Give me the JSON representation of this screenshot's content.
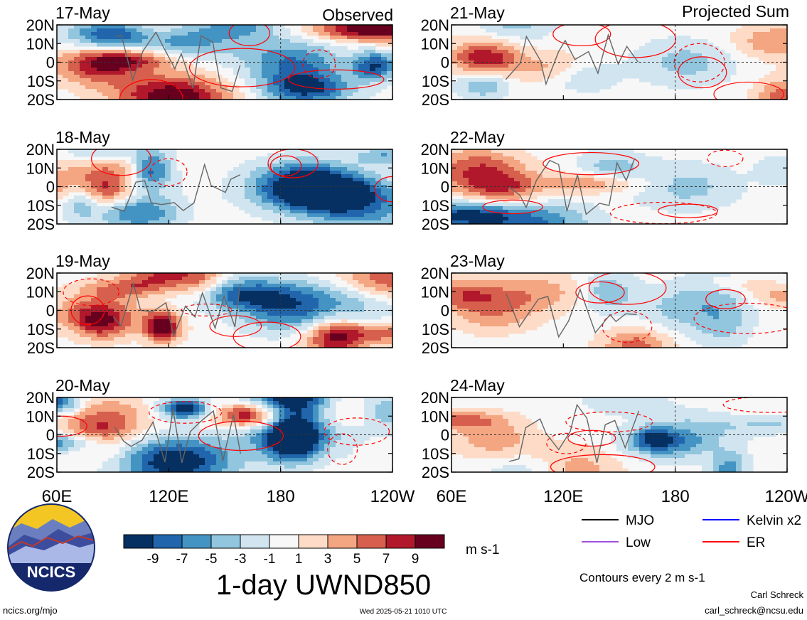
{
  "column_titles": {
    "left": "Observed",
    "right": "Projected Sum"
  },
  "panels": [
    {
      "date": "17-May",
      "column": "left",
      "row": 0
    },
    {
      "date": "18-May",
      "column": "left",
      "row": 1
    },
    {
      "date": "19-May",
      "column": "left",
      "row": 2
    },
    {
      "date": "20-May",
      "column": "left",
      "row": 3
    },
    {
      "date": "21-May",
      "column": "right",
      "row": 0
    },
    {
      "date": "22-May",
      "column": "right",
      "row": 1
    },
    {
      "date": "23-May",
      "column": "right",
      "row": 2
    },
    {
      "date": "24-May",
      "column": "right",
      "row": 3
    }
  ],
  "chart_data": {
    "type": "heatmap",
    "title": "1-day UWND850",
    "xlabel": "",
    "ylabel": "",
    "x_ticks": [
      "60E",
      "120E",
      "180",
      "120W"
    ],
    "y_ticks": [
      "20N",
      "10N",
      "0",
      "10S",
      "20S"
    ],
    "colorbar": {
      "unit": "m s-1",
      "labels": [
        "-9",
        "-7",
        "-5",
        "-3",
        "-1",
        "1",
        "3",
        "5",
        "7",
        "9"
      ],
      "colors": [
        "#053061",
        "#2166ac",
        "#4393c3",
        "#92c5de",
        "#d1e5f0",
        "#f7f7f7",
        "#fddbc7",
        "#f4a582",
        "#d6604d",
        "#b2182b",
        "#67001f"
      ]
    },
    "legend": [
      {
        "name": "MJO",
        "color": "#000000"
      },
      {
        "name": "Kelvin x2",
        "color": "#0000ff"
      },
      {
        "name": "Low",
        "color": "#a050e0"
      },
      {
        "name": "ER",
        "color": "#ff0000"
      }
    ],
    "contour_note": "Contours every 2 m s-1"
  },
  "footer": {
    "url": "ncics.org/mjo",
    "timestamp": "Wed 2025-05-21 1010 UTC",
    "author": "Carl Schreck",
    "email": "carl_schreck@ncsu.edu",
    "logo_text": "NCICS"
  }
}
